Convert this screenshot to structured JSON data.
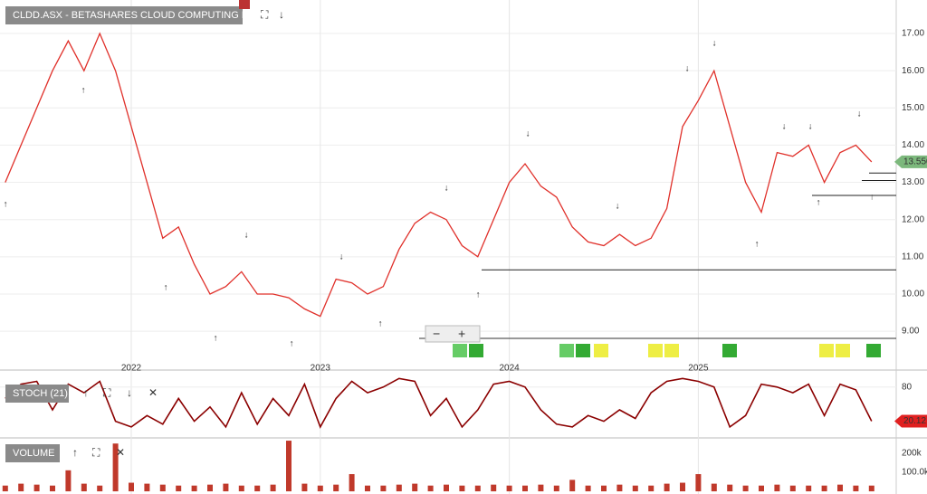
{
  "chart_data": [
    {
      "type": "line",
      "title": "CLDD.ASX - BETASHARES CLOUD COMPUTING ETF",
      "categories": [
        null,
        null,
        null,
        null,
        null,
        null,
        null,
        null,
        "2022",
        null,
        null,
        null,
        null,
        null,
        null,
        null,
        null,
        null,
        null,
        null,
        "2023",
        null,
        null,
        null,
        null,
        null,
        null,
        null,
        null,
        null,
        null,
        null,
        "2024",
        null,
        null,
        null,
        null,
        null,
        null,
        null,
        null,
        null,
        null,
        null,
        "2025",
        null,
        null,
        null,
        null,
        null,
        null,
        null,
        null,
        null,
        null,
        null
      ],
      "series": [
        {
          "color": "#e0302a",
          "values": [
            13.0,
            14.0,
            15.0,
            16.0,
            16.8,
            16.0,
            17.0,
            16.0,
            14.5,
            13.0,
            11.5,
            11.8,
            10.8,
            10.0,
            10.2,
            10.6,
            10.0,
            10.0,
            9.9,
            9.6,
            9.4,
            10.4,
            10.3,
            10.0,
            10.2,
            11.2,
            11.9,
            12.2,
            12.0,
            11.3,
            11.0,
            12.0,
            13.0,
            13.5,
            12.9,
            12.6,
            11.8,
            11.4,
            11.3,
            11.6,
            11.3,
            11.5,
            12.3,
            14.5,
            15.2,
            16.0,
            14.5,
            13.0,
            12.2,
            13.8,
            13.7,
            14.0,
            13.0,
            13.8,
            14.0,
            13.55
          ]
        }
      ],
      "last_value": {
        "value": 13.55,
        "label": "13.550"
      },
      "levels": [
        10.65,
        12.65,
        13.05,
        13.25
      ],
      "ylim": [
        8.2,
        17.9
      ],
      "yticks": [
        {
          "value": 9,
          "label": "9.00"
        },
        {
          "value": 10,
          "label": "10.00"
        },
        {
          "value": 11,
          "label": "11.00"
        },
        {
          "value": 12,
          "label": "12.00"
        },
        {
          "value": 13,
          "label": "13.00"
        },
        {
          "value": 14,
          "label": "14.00"
        },
        {
          "value": 15,
          "label": "15.00"
        },
        {
          "value": 16,
          "label": "16.00"
        },
        {
          "value": 17,
          "label": "17.00"
        }
      ],
      "grid": true
    },
    {
      "type": "line",
      "title": "STOCH (21)",
      "series": [
        {
          "color": "#8b0000",
          "values": [
            60,
            85,
            90,
            40,
            85,
            70,
            90,
            20,
            10,
            30,
            15,
            60,
            20,
            45,
            10,
            70,
            15,
            60,
            30,
            85,
            10,
            60,
            90,
            70,
            80,
            95,
            90,
            30,
            60,
            10,
            40,
            85,
            90,
            80,
            40,
            15,
            10,
            30,
            20,
            40,
            25,
            70,
            90,
            95,
            90,
            80,
            10,
            30,
            85,
            80,
            70,
            85,
            30,
            85,
            75,
            20.12
          ]
        }
      ],
      "last_value": {
        "value": 20.12,
        "label": "20.12"
      },
      "ylim": [
        -6,
        105
      ],
      "yticks": [
        80
      ],
      "grid": true
    },
    {
      "type": "bar",
      "title": "VOLUME",
      "series": [
        {
          "color": "#c0392b",
          "values": [
            30000,
            40000,
            35000,
            30000,
            110000,
            40000,
            30000,
            250000,
            45000,
            40000,
            35000,
            30000,
            30000,
            35000,
            40000,
            30000,
            30000,
            35000,
            265000,
            40000,
            30000,
            35000,
            90000,
            30000,
            30000,
            35000,
            40000,
            30000,
            35000,
            30000,
            30000,
            35000,
            30000,
            30000,
            35000,
            30000,
            60000,
            30000,
            30000,
            35000,
            30000,
            30000,
            40000,
            45000,
            90000,
            40000,
            35000,
            30000,
            30000,
            35000,
            30000,
            30000,
            30000,
            35000,
            30000,
            30000
          ]
        }
      ],
      "ylim": [
        -14000,
        270000
      ],
      "yticks": [
        {
          "value": 200000,
          "label": "200k"
        },
        {
          "value": 100000,
          "label": "100.0k"
        }
      ]
    }
  ]
}
